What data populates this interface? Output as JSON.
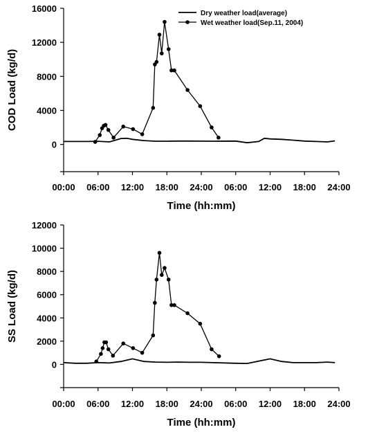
{
  "chart_data": [
    {
      "type": "line",
      "ylabel": "COD Load (kg/d)",
      "xlabel": "Time (hh:mm)",
      "ylim": [
        -3200,
        16000
      ],
      "y_ticks": [
        "0",
        "4000",
        "8000",
        "12000",
        "16000"
      ],
      "y_tick_values": [
        0,
        4000,
        8000,
        12000,
        16000
      ],
      "x_range_hours": [
        0,
        48
      ],
      "x_ticks": [
        "00:00",
        "06:00",
        "12:00",
        "18:00",
        "24:00",
        "06:00",
        "12:00",
        "18:00",
        "24:00"
      ],
      "legend": {
        "placement": "top-right",
        "entries": [
          "Dry weather load(average)",
          "Wet weather load(Sep.11, 2004)"
        ]
      },
      "series": [
        {
          "name": "Dry weather load(average)",
          "marker": "none",
          "x": [
            0,
            2,
            4,
            6,
            8,
            10,
            11,
            12,
            14,
            16,
            18,
            20,
            22,
            24,
            26,
            30,
            32,
            34,
            35,
            36,
            38,
            40,
            42,
            44,
            46,
            47.3
          ],
          "y": [
            350,
            350,
            350,
            370,
            300,
            700,
            720,
            600,
            450,
            380,
            380,
            400,
            400,
            390,
            380,
            400,
            200,
            350,
            720,
            650,
            600,
            500,
            400,
            350,
            300,
            420
          ]
        },
        {
          "name": "Wet weather load(Sep.11, 2004)",
          "marker": "circle",
          "x": [
            5.5,
            6.3,
            6.7,
            7.0,
            7.3,
            7.8,
            8.7,
            10.4,
            12.1,
            13.7,
            15.6,
            15.9,
            16.2,
            16.7,
            17.1,
            17.6,
            18.3,
            18.8,
            19.3,
            21.6,
            23.8,
            25.8,
            27.0
          ],
          "y": [
            300,
            1100,
            1900,
            2200,
            2300,
            1700,
            800,
            2100,
            1800,
            1200,
            4300,
            9400,
            9700,
            12900,
            10700,
            14400,
            11200,
            8700,
            8700,
            6400,
            4500,
            2000,
            800
          ]
        }
      ]
    },
    {
      "type": "line",
      "ylabel": "SS Load (kg/d)",
      "xlabel": "Time (hh:mm)",
      "ylim": [
        -2000,
        12000
      ],
      "y_ticks": [
        "0",
        "2000",
        "4000",
        "6000",
        "8000",
        "10000",
        "12000"
      ],
      "y_tick_values": [
        0,
        2000,
        4000,
        6000,
        8000,
        10000,
        12000
      ],
      "x_range_hours": [
        0,
        48
      ],
      "x_ticks": [
        "00:00",
        "06:00",
        "12:00",
        "18:00",
        "24:00",
        "06:00",
        "12:00",
        "18:00",
        "24:00"
      ],
      "series": [
        {
          "name": "Dry weather load(average)",
          "marker": "none",
          "x": [
            0,
            2,
            4,
            6,
            8,
            10,
            12,
            14,
            16,
            18,
            20,
            22,
            24,
            26,
            30,
            32,
            34,
            36,
            38,
            40,
            42,
            44,
            46,
            47.3
          ],
          "y": [
            150,
            100,
            100,
            150,
            120,
            250,
            480,
            250,
            200,
            180,
            200,
            180,
            180,
            150,
            100,
            80,
            280,
            480,
            250,
            150,
            150,
            150,
            200,
            150
          ]
        },
        {
          "name": "Wet weather load(Sep.11, 2004)",
          "marker": "circle",
          "x": [
            5.7,
            6.5,
            6.8,
            7.1,
            7.4,
            7.8,
            8.6,
            10.4,
            12.1,
            13.7,
            15.6,
            15.9,
            16.2,
            16.7,
            17.1,
            17.6,
            18.3,
            18.8,
            19.3,
            21.6,
            23.8,
            25.8,
            27.1
          ],
          "y": [
            250,
            900,
            1400,
            1900,
            1900,
            1300,
            750,
            1800,
            1400,
            1000,
            2500,
            5300,
            7300,
            9600,
            7700,
            8300,
            7300,
            5100,
            5100,
            4400,
            3500,
            1300,
            700
          ]
        }
      ]
    }
  ]
}
